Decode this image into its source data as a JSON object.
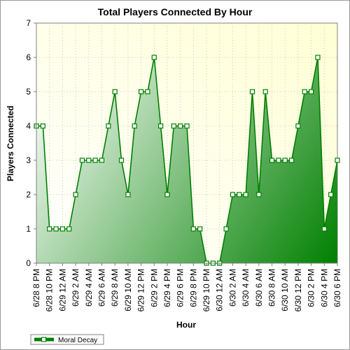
{
  "chart_data": {
    "type": "area",
    "title": "Total Players Connected By Hour",
    "xlabel": "Hour",
    "ylabel": "Players Connected",
    "ylim": [
      0,
      7
    ],
    "y_ticks": [
      "0",
      "1",
      "2",
      "3",
      "4",
      "5",
      "6",
      "7"
    ],
    "x_tick_labels": [
      "6/28 8 PM",
      "6/28 10 PM",
      "6/29 12 AM",
      "6/29 2 AM",
      "6/29 4 AM",
      "6/29 6 AM",
      "6/29 8 AM",
      "6/29 10 AM",
      "6/29 12 PM",
      "6/29 2 PM",
      "6/29 4 PM",
      "6/29 6 PM",
      "6/29 8 PM",
      "6/29 10 PM",
      "6/30 12 AM",
      "6/30 2 AM",
      "6/30 4 AM",
      "6/30 6 AM",
      "6/30 8 AM",
      "6/30 10 AM",
      "6/30 12 PM",
      "6/30 2 PM",
      "6/30 4 PM",
      "6/30 6 PM"
    ],
    "x": [
      "6/28 8 PM",
      "6/28 9 PM",
      "6/28 10 PM",
      "6/28 11 PM",
      "6/29 12 AM",
      "6/29 1 AM",
      "6/29 2 AM",
      "6/29 3 AM",
      "6/29 4 AM",
      "6/29 5 AM",
      "6/29 6 AM",
      "6/29 7 AM",
      "6/29 8 AM",
      "6/29 9 AM",
      "6/29 10 AM",
      "6/29 11 AM",
      "6/29 12 PM",
      "6/29 1 PM",
      "6/29 2 PM",
      "6/29 3 PM",
      "6/29 4 PM",
      "6/29 5 PM",
      "6/29 6 PM",
      "6/29 7 PM",
      "6/29 8 PM",
      "6/29 9 PM",
      "6/29 10 PM",
      "6/29 11 PM",
      "6/30 12 AM",
      "6/30 1 AM",
      "6/30 2 AM",
      "6/30 3 AM",
      "6/30 4 AM",
      "6/30 5 AM",
      "6/30 6 AM",
      "6/30 7 AM",
      "6/30 8 AM",
      "6/30 9 AM",
      "6/30 10 AM",
      "6/30 11 AM",
      "6/30 12 PM",
      "6/30 1 PM",
      "6/30 2 PM",
      "6/30 3 PM",
      "6/30 4 PM",
      "6/30 5 PM",
      "6/30 6 PM"
    ],
    "series": [
      {
        "name": "Moral Decay",
        "values": [
          4,
          4,
          1,
          1,
          1,
          1,
          2,
          3,
          3,
          3,
          3,
          4,
          5,
          3,
          2,
          4,
          5,
          5,
          6,
          4,
          2,
          4,
          4,
          4,
          1,
          1,
          0,
          0,
          0,
          1,
          2,
          2,
          2,
          5,
          2,
          5,
          3,
          3,
          3,
          3,
          4,
          5,
          5,
          6,
          1,
          2,
          3
        ]
      }
    ],
    "grid": true,
    "legend": "bottom-left",
    "colors": {
      "line": "#008000",
      "fill_dark": "#008000",
      "fill_light": "#ffffff",
      "plot_bg": "#ffffe0",
      "marker_fill": "#ffffff"
    }
  }
}
